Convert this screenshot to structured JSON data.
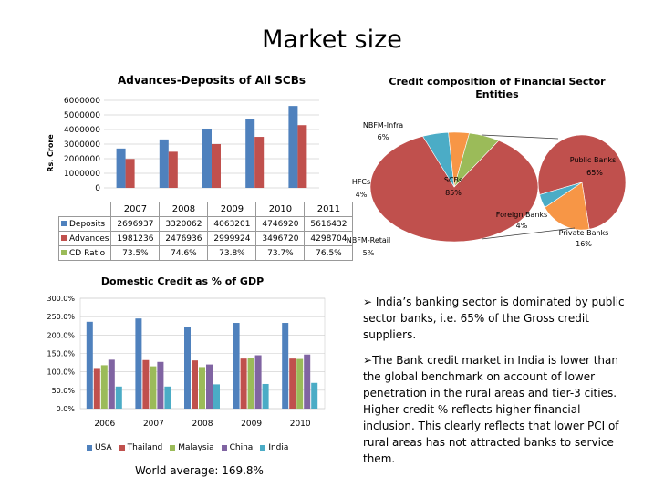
{
  "page_title": "Market size",
  "colors": {
    "blue": "#4F81BD",
    "red": "#C0504D",
    "green": "#9BBB59",
    "purple": "#8064A2",
    "aqua": "#4BACC6",
    "orange": "#F79646"
  },
  "chart_data": [
    {
      "type": "bar",
      "title": "Advances-Deposits of All SCBs",
      "ylabel": "Rs. Crore",
      "ylim": [
        0,
        6000000
      ],
      "yticks": [
        "6000000",
        "5000000",
        "4000000",
        "3000000",
        "2000000",
        "1000000",
        "0"
      ],
      "categories": [
        "2007",
        "2008",
        "2009",
        "2010",
        "2011"
      ],
      "series": [
        {
          "name": "Deposits",
          "values": [
            2696937,
            3320062,
            4063201,
            4746920,
            5616432
          ],
          "labels": [
            "2696937",
            "3320062",
            "4063201",
            "4746920",
            "5616432"
          ]
        },
        {
          "name": "Advances",
          "values": [
            1981236,
            2476936,
            2999924,
            3496720,
            4298704
          ],
          "labels": [
            "1981236",
            "2476936",
            "2999924",
            "3496720",
            "4298704"
          ]
        },
        {
          "name": "CD Ratio",
          "values": [
            73.5,
            74.6,
            73.8,
            73.7,
            76.5
          ],
          "labels": [
            "73.5%",
            "74.6%",
            "73.8%",
            "73.7%",
            "76.5%"
          ]
        }
      ]
    },
    {
      "type": "pie",
      "title": "Credit composition of Financial Sector Entities",
      "slices": [
        {
          "name": "Public Banks",
          "value": 65,
          "label": "65%"
        },
        {
          "name": "Private Banks",
          "value": 16,
          "label": "16%"
        },
        {
          "name": "Foreign Banks",
          "value": 4,
          "label": "4%"
        },
        {
          "name": "NBFM-Retail",
          "value": 5,
          "label": "5%"
        },
        {
          "name": "HFCs",
          "value": 4,
          "label": "4%"
        },
        {
          "name": "NBFM-Infra",
          "value": 6,
          "label": "6%"
        },
        {
          "name": "SCBs",
          "value": 85,
          "label": "85%"
        }
      ]
    },
    {
      "type": "bar",
      "title": "Domestic Credit as % of GDP",
      "ylim": [
        0,
        300
      ],
      "yticks": [
        "300.0%",
        "250.0%",
        "200.0%",
        "150.0%",
        "100.0%",
        "50.0%",
        "0.0%"
      ],
      "categories": [
        "2006",
        "2007",
        "2008",
        "2009",
        "2010"
      ],
      "series": [
        {
          "name": "USA",
          "values": [
            236,
            245,
            221,
            233,
            233
          ]
        },
        {
          "name": "Thailand",
          "values": [
            108,
            132,
            131,
            136,
            136
          ]
        },
        {
          "name": "Malaysia",
          "values": [
            118,
            115,
            113,
            137,
            135
          ]
        },
        {
          "name": "China",
          "values": [
            133,
            127,
            120,
            145,
            147
          ]
        },
        {
          "name": "India",
          "values": [
            60,
            60,
            66,
            67,
            70
          ]
        }
      ],
      "annotation": "World average: 169.8%"
    }
  ],
  "bullets": [
    "India’s banking sector is dominated by public sector banks, i.e. 65% of the Gross credit suppliers.",
    "The Bank credit market in India is lower than the global benchmark on account of lower penetration in the rural  areas and tier-3 cities. Higher credit % reflects higher financial inclusion. This clearly reflects that lower PCI of rural areas has not attracted banks to service them."
  ]
}
